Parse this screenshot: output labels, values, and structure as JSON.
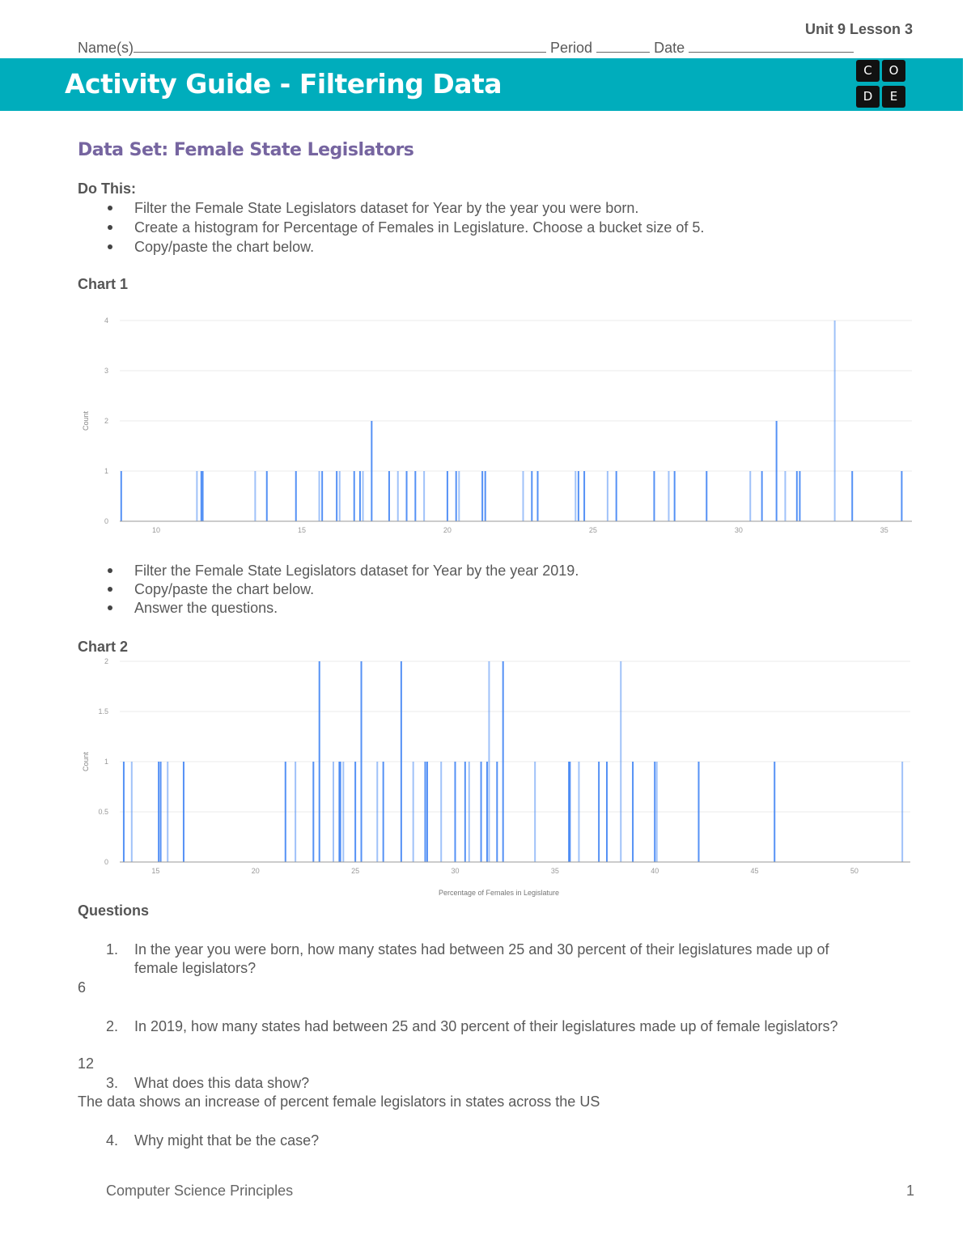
{
  "header": {
    "unit_lesson": "Unit 9 Lesson 3",
    "name_label": "Name(s)",
    "period_label": "Period",
    "date_label": "Date",
    "title": "Activity Guide - Filtering Data",
    "logo_letters": [
      "C",
      "O",
      "D",
      "E"
    ],
    "band_color": "#00adbc"
  },
  "dataset_title": "Data Set: Female State Legislators",
  "do_this": {
    "label": "Do This:",
    "bullets_1": [
      "Filter the Female State Legislators dataset for Year by the year you were born.",
      "Create a histogram for Percentage of Females in Legislature. Choose a bucket size of 5.",
      "Copy/paste the chart below."
    ],
    "bullets_2": [
      "Filter the Female State Legislators dataset for Year by the year 2019.",
      "Copy/paste the chart below.",
      "Answer the questions."
    ]
  },
  "chart1_label": "Chart 1",
  "chart2_label": "Chart 2",
  "chart_data": [
    {
      "type": "bar",
      "title": "",
      "xlabel": "",
      "ylabel": "Count",
      "xlim": [
        8.75,
        35.95
      ],
      "ylim": [
        0,
        4
      ],
      "xticks": [
        10,
        15,
        20,
        25,
        30,
        35
      ],
      "yticks": [
        0,
        1,
        2,
        3,
        4
      ],
      "grid": true,
      "bar_color": "#4285f4",
      "bars": [
        {
          "x": 8.8,
          "count": 1
        },
        {
          "x": 11.4,
          "count": 1
        },
        {
          "x": 11.55,
          "count": 1
        },
        {
          "x": 11.6,
          "count": 1
        },
        {
          "x": 13.4,
          "count": 1
        },
        {
          "x": 13.8,
          "count": 1
        },
        {
          "x": 14.8,
          "count": 1
        },
        {
          "x": 15.6,
          "count": 1
        },
        {
          "x": 15.7,
          "count": 1
        },
        {
          "x": 16.2,
          "count": 1
        },
        {
          "x": 16.3,
          "count": 1
        },
        {
          "x": 16.8,
          "count": 1
        },
        {
          "x": 17.0,
          "count": 1
        },
        {
          "x": 17.1,
          "count": 1
        },
        {
          "x": 17.4,
          "count": 2
        },
        {
          "x": 18.0,
          "count": 1
        },
        {
          "x": 18.3,
          "count": 1
        },
        {
          "x": 18.6,
          "count": 1
        },
        {
          "x": 18.9,
          "count": 1
        },
        {
          "x": 19.2,
          "count": 1
        },
        {
          "x": 20.0,
          "count": 1
        },
        {
          "x": 20.3,
          "count": 1
        },
        {
          "x": 20.4,
          "count": 1
        },
        {
          "x": 21.2,
          "count": 1
        },
        {
          "x": 21.3,
          "count": 1
        },
        {
          "x": 22.6,
          "count": 1
        },
        {
          "x": 22.9,
          "count": 1
        },
        {
          "x": 23.1,
          "count": 1
        },
        {
          "x": 24.4,
          "count": 1
        },
        {
          "x": 24.5,
          "count": 1
        },
        {
          "x": 24.7,
          "count": 1
        },
        {
          "x": 25.5,
          "count": 1
        },
        {
          "x": 25.8,
          "count": 1
        },
        {
          "x": 27.1,
          "count": 1
        },
        {
          "x": 27.6,
          "count": 1
        },
        {
          "x": 27.8,
          "count": 1
        },
        {
          "x": 28.9,
          "count": 1
        },
        {
          "x": 30.4,
          "count": 1
        },
        {
          "x": 30.8,
          "count": 1
        },
        {
          "x": 31.3,
          "count": 2
        },
        {
          "x": 31.6,
          "count": 1
        },
        {
          "x": 32.0,
          "count": 1
        },
        {
          "x": 32.1,
          "count": 1
        },
        {
          "x": 33.3,
          "count": 4
        },
        {
          "x": 33.9,
          "count": 1
        },
        {
          "x": 35.6,
          "count": 1
        }
      ]
    },
    {
      "type": "bar",
      "title": "",
      "xlabel": "Percentage of Females in Legislature",
      "ylabel": "Count",
      "xlim": [
        13.2,
        52.8
      ],
      "ylim": [
        0,
        2
      ],
      "xticks": [
        15,
        20,
        25,
        30,
        35,
        40,
        45,
        50
      ],
      "yticks": [
        0,
        0.5,
        1,
        1.5,
        2
      ],
      "grid": true,
      "bar_color": "#4285f4",
      "bars": [
        {
          "x": 13.4,
          "count": 1
        },
        {
          "x": 13.8,
          "count": 1
        },
        {
          "x": 15.15,
          "count": 1
        },
        {
          "x": 15.25,
          "count": 1
        },
        {
          "x": 15.6,
          "count": 1
        },
        {
          "x": 16.4,
          "count": 1
        },
        {
          "x": 21.5,
          "count": 1
        },
        {
          "x": 22.0,
          "count": 1
        },
        {
          "x": 22.9,
          "count": 1
        },
        {
          "x": 23.2,
          "count": 2
        },
        {
          "x": 23.9,
          "count": 1
        },
        {
          "x": 24.2,
          "count": 1
        },
        {
          "x": 24.25,
          "count": 1
        },
        {
          "x": 24.4,
          "count": 1
        },
        {
          "x": 25.0,
          "count": 1
        },
        {
          "x": 25.3,
          "count": 2
        },
        {
          "x": 26.1,
          "count": 1
        },
        {
          "x": 26.4,
          "count": 1
        },
        {
          "x": 27.3,
          "count": 2
        },
        {
          "x": 27.9,
          "count": 1
        },
        {
          "x": 28.5,
          "count": 1
        },
        {
          "x": 28.6,
          "count": 1
        },
        {
          "x": 29.3,
          "count": 1
        },
        {
          "x": 30.0,
          "count": 1
        },
        {
          "x": 30.5,
          "count": 1
        },
        {
          "x": 30.7,
          "count": 1
        },
        {
          "x": 31.3,
          "count": 1
        },
        {
          "x": 31.6,
          "count": 1
        },
        {
          "x": 31.7,
          "count": 2
        },
        {
          "x": 32.1,
          "count": 1
        },
        {
          "x": 32.4,
          "count": 2
        },
        {
          "x": 34.0,
          "count": 1
        },
        {
          "x": 35.7,
          "count": 1
        },
        {
          "x": 35.75,
          "count": 1
        },
        {
          "x": 36.2,
          "count": 1
        },
        {
          "x": 37.2,
          "count": 1
        },
        {
          "x": 37.6,
          "count": 1
        },
        {
          "x": 38.3,
          "count": 2
        },
        {
          "x": 38.9,
          "count": 1
        },
        {
          "x": 40.0,
          "count": 1
        },
        {
          "x": 40.1,
          "count": 1
        },
        {
          "x": 42.2,
          "count": 1
        },
        {
          "x": 46.0,
          "count": 1
        },
        {
          "x": 52.4,
          "count": 1
        }
      ]
    }
  ],
  "questions": {
    "label": "Questions",
    "items": [
      {
        "number": "1.",
        "line1": "In the year you were born, how many states had between 25 and 30 percent of their legislatures made up of",
        "line2": "female legislators?",
        "answer": "6"
      },
      {
        "number": "2.",
        "line1": "In 2019, how many states had between 25 and 30 percent of their legislatures made up of female legislators?",
        "answer": "12"
      },
      {
        "number": "3.",
        "line1": "What does this data show?",
        "answer": "The data shows an increase of percent female legislators in states across the US"
      },
      {
        "number": "4.",
        "line1": "Why might that be the case?"
      }
    ]
  },
  "footer": {
    "course": "Computer Science Principles",
    "page_number": "1"
  }
}
